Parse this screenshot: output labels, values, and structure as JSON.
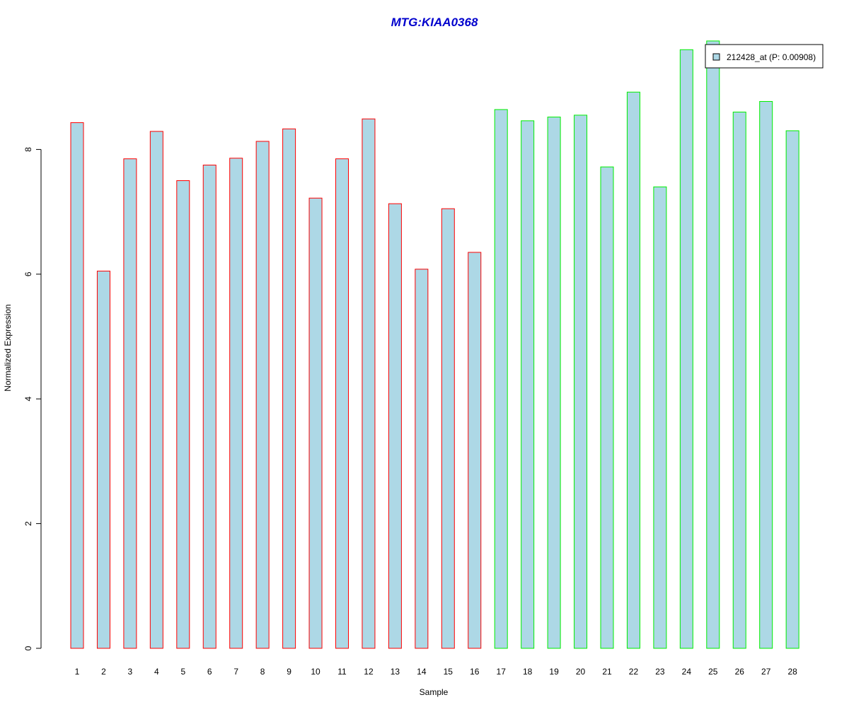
{
  "chart_data": {
    "type": "bar",
    "title": "MTG:KIAA0368",
    "xlabel": "Sample",
    "ylabel": "Normalized Expression",
    "categories": [
      "1",
      "2",
      "3",
      "4",
      "5",
      "6",
      "7",
      "8",
      "9",
      "10",
      "11",
      "12",
      "13",
      "14",
      "15",
      "16",
      "17",
      "18",
      "19",
      "20",
      "21",
      "22",
      "23",
      "24",
      "25",
      "26",
      "27",
      "28"
    ],
    "series": [
      {
        "name": "212428_at (P: 0.00908)",
        "values": [
          8.43,
          6.05,
          7.85,
          8.29,
          7.5,
          7.75,
          7.86,
          8.13,
          8.33,
          7.22,
          7.85,
          8.49,
          7.13,
          6.08,
          7.05,
          6.35,
          8.64,
          8.46,
          8.52,
          8.55,
          7.72,
          8.92,
          7.4,
          9.6,
          9.74,
          8.6,
          8.77,
          8.3
        ]
      }
    ],
    "groups": [
      {
        "samples": "1-16",
        "border_color": "#ff0000"
      },
      {
        "samples": "17-28",
        "border_color": "#00ee00"
      }
    ],
    "ylim": [
      0,
      9.74
    ],
    "y_ticks": [
      0,
      2,
      4,
      6,
      8
    ],
    "grid": false,
    "legend_position": "top-right",
    "colors": {
      "bar_fill": "#add8e6",
      "group1_border": "#ff0000",
      "group2_border": "#00ee00",
      "title": "#0000cd",
      "axis": "#000000"
    }
  }
}
